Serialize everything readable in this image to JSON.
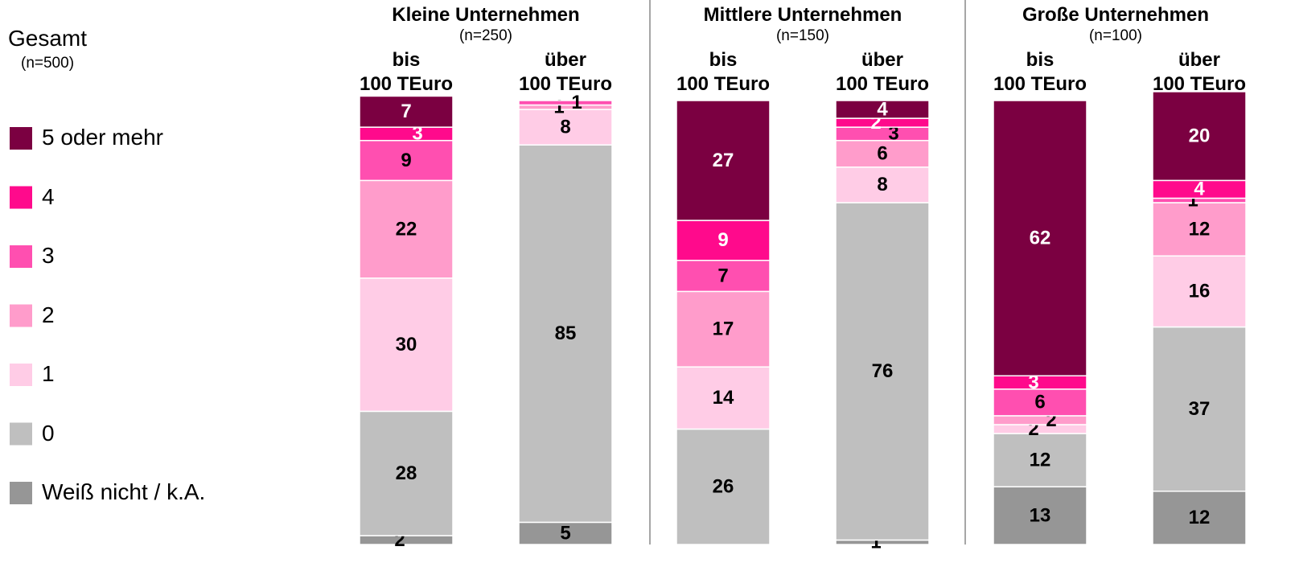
{
  "chart_data": {
    "type": "stacked_bar",
    "legend_title": "Gesamt",
    "legend_subtitle": "(n=500)",
    "groups": [
      {
        "title": "Kleine Unternehmen",
        "subtitle": "(n=250)"
      },
      {
        "title": "Mittlere Unternehmen",
        "subtitle": "(n=150)"
      },
      {
        "title": "Große Unternehmen",
        "subtitle": "(n=100)"
      }
    ],
    "categories": [
      "bis\n100 TEuro",
      "über\n100 TEuro",
      "bis\n100 TEuro",
      "über\n100 TEuro",
      "bis\n100 TEuro",
      "über\n100 TEuro"
    ],
    "series": [
      {
        "name": "5 oder mehr",
        "color": "#7b0041",
        "values": [
          7,
          0,
          27,
          4,
          62,
          20
        ]
      },
      {
        "name": "4",
        "color": "#ff0a8c",
        "values": [
          3,
          0,
          9,
          2,
          3,
          4
        ]
      },
      {
        "name": "3",
        "color": "#ff4fb0",
        "values": [
          9,
          1,
          7,
          3,
          6,
          1
        ]
      },
      {
        "name": "2",
        "color": "#ff9ccb",
        "values": [
          22,
          1,
          17,
          6,
          2,
          12
        ]
      },
      {
        "name": "1",
        "color": "#ffcce6",
        "values": [
          30,
          8,
          14,
          8,
          2,
          16
        ]
      },
      {
        "name": "0",
        "color": "#bfbfbf",
        "values": [
          28,
          85,
          26,
          76,
          12,
          37
        ]
      },
      {
        "name": "Weiß nicht / k.A.",
        "color": "#969696",
        "values": [
          2,
          5,
          0,
          1,
          13,
          12
        ]
      }
    ]
  }
}
